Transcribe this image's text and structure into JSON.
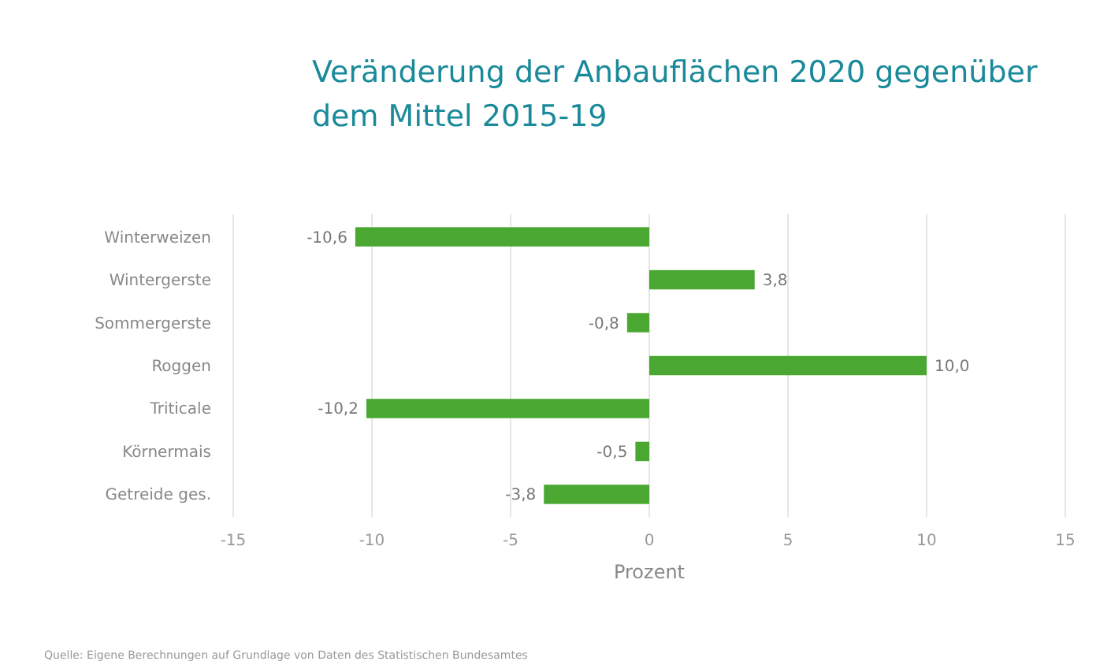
{
  "chart_data": {
    "type": "bar",
    "orientation": "horizontal",
    "title": "Veränderung der Anbauflächen 2020 gegenüber dem Mittel 2015-19",
    "xlabel": "Prozent",
    "categories": [
      "Winterweizen",
      "Wintergerste",
      "Sommergerste",
      "Roggen",
      "Triticale",
      "Körnermais",
      "Getreide ges."
    ],
    "values": [
      -10.6,
      3.8,
      -0.8,
      10.0,
      -10.2,
      -0.5,
      -3.8
    ],
    "value_labels": [
      "-10,6",
      "3,8",
      "-0,8",
      "10,0",
      "-10,2",
      "-0,5",
      "-3,8"
    ],
    "color": "#4aa832",
    "xlim": [
      -15,
      15
    ],
    "xticks": [
      -15,
      -10,
      -5,
      0,
      5,
      10,
      15
    ],
    "grid": "x",
    "annotations": [
      "Quelle: Eigene Berechnungen auf Grundlage von Daten des Statistischen Bundesamtes"
    ]
  }
}
